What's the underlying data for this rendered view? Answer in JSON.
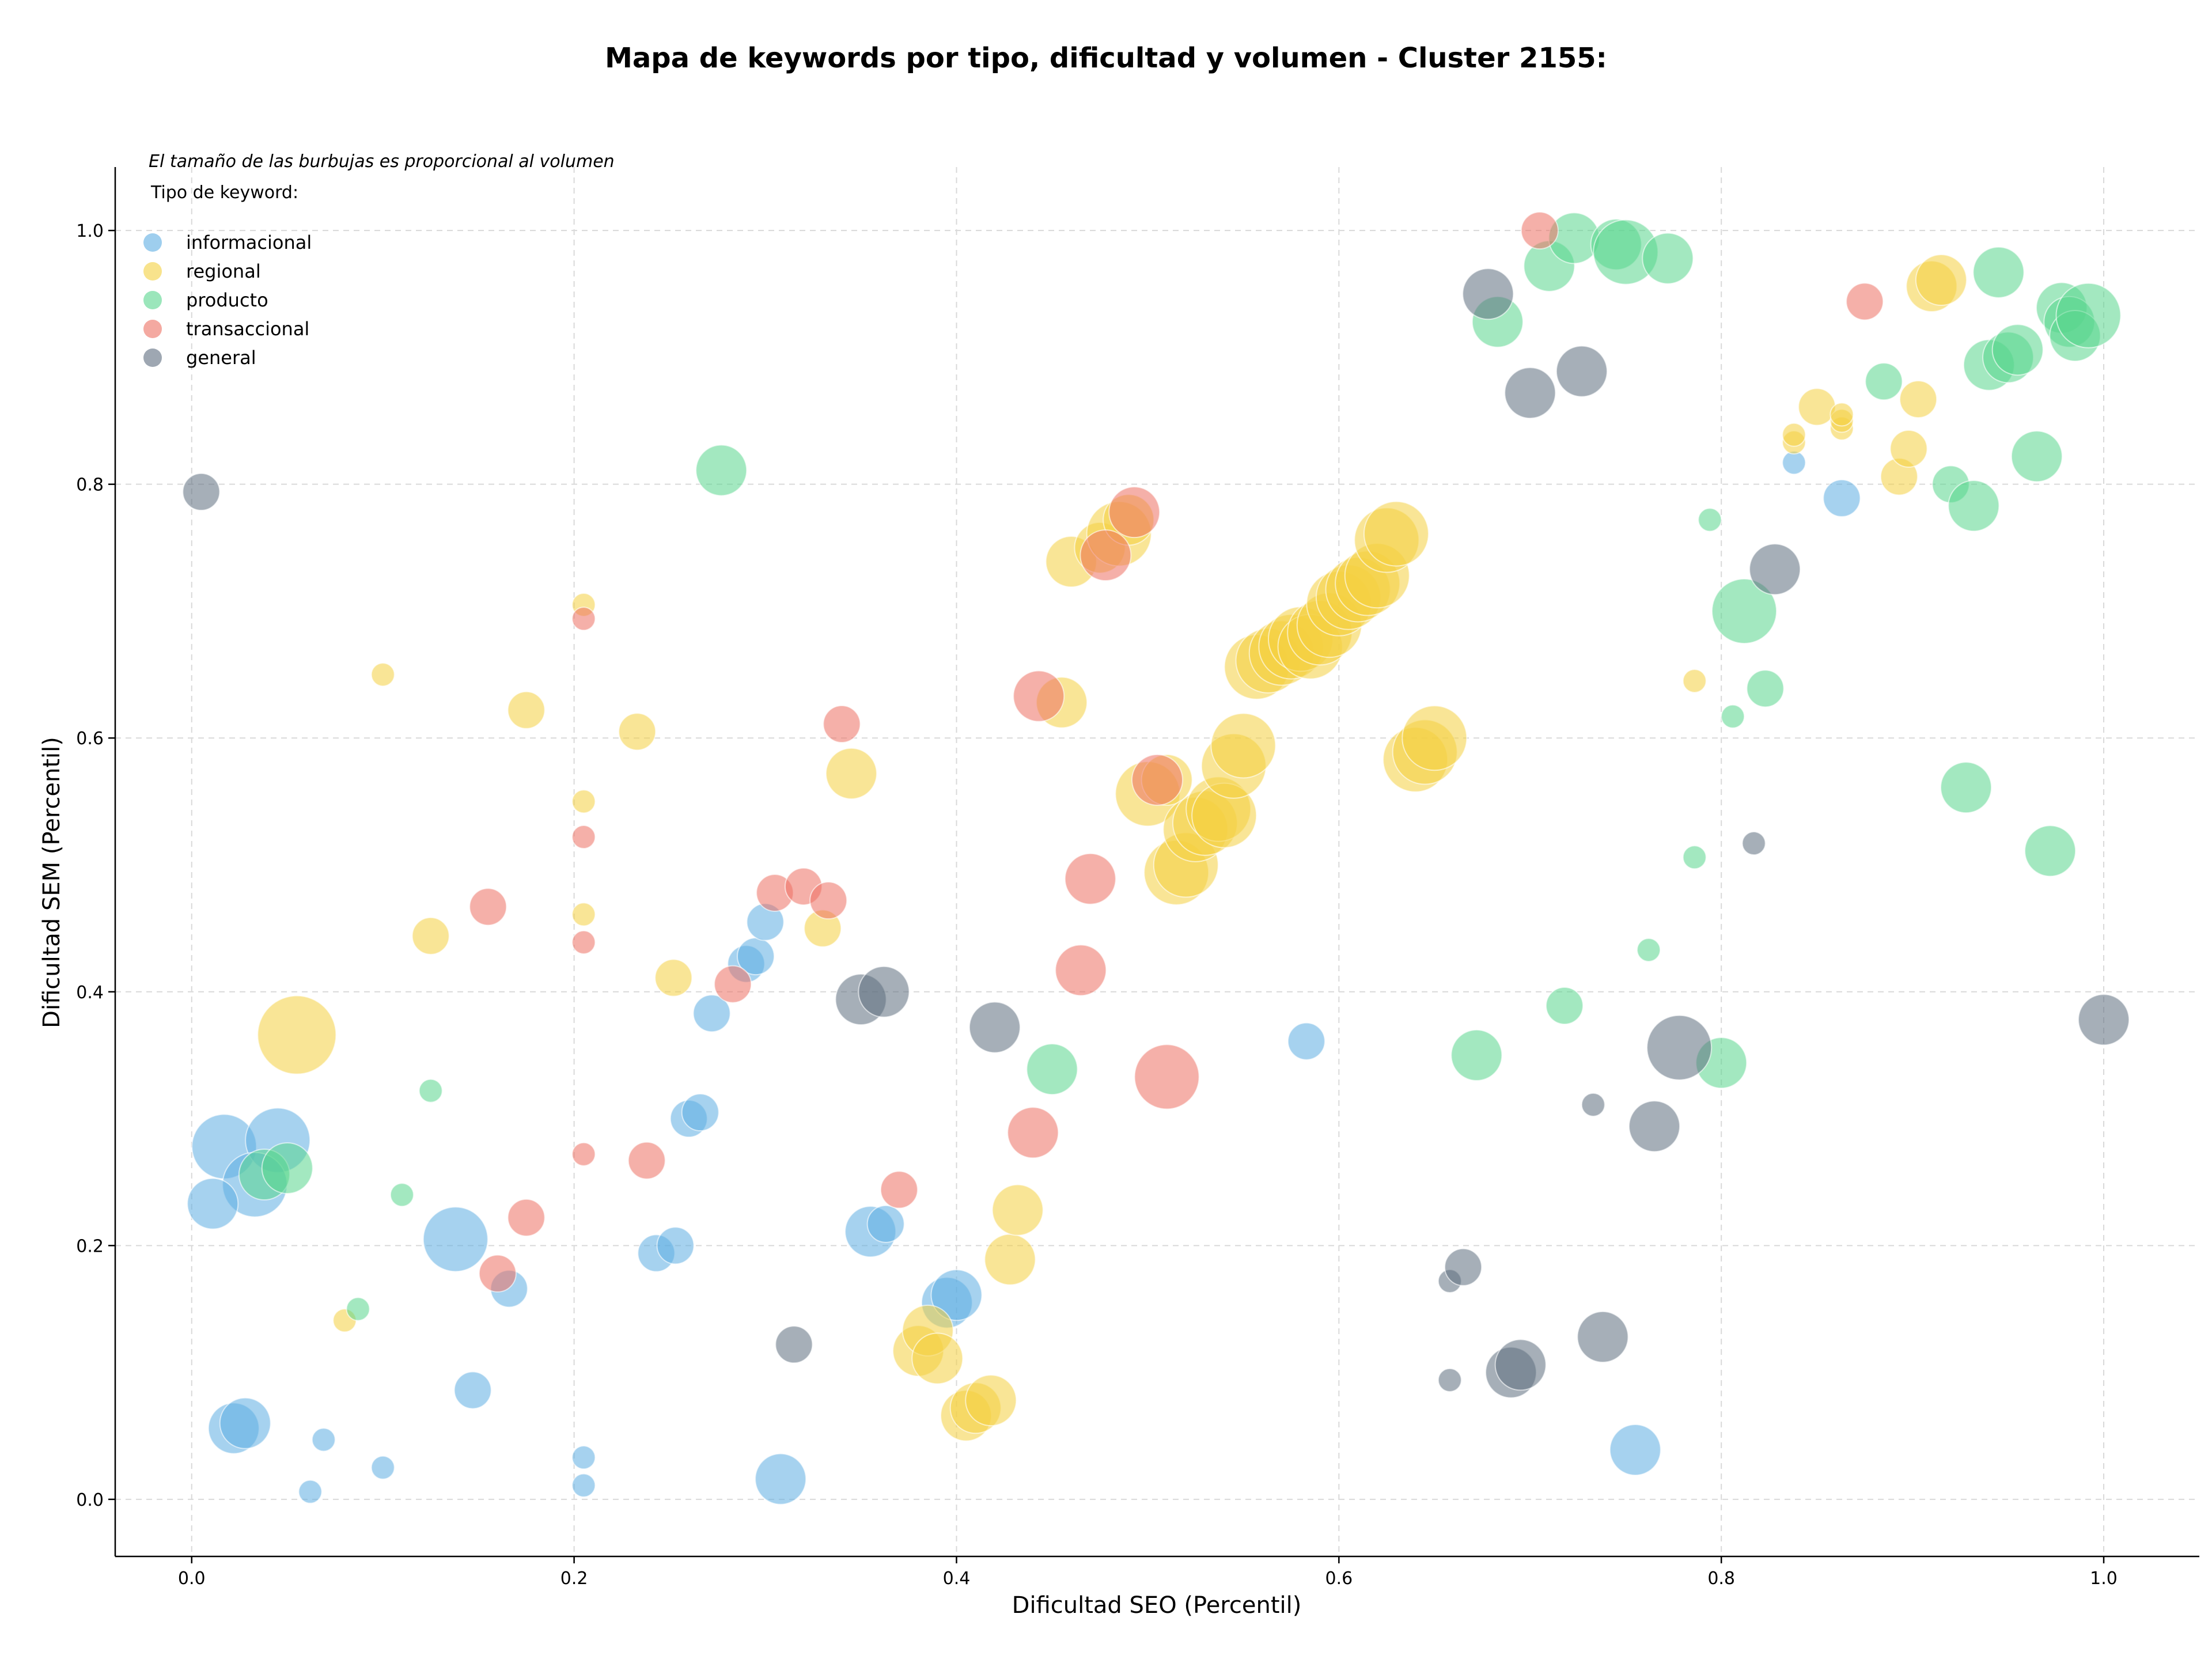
{
  "chart_data": {
    "type": "scatter",
    "title": "Mapa de keywords por tipo, dificultad y volumen - Cluster 2155:",
    "xlabel": "Dificultad SEO (Percentil)",
    "ylabel": "Dificultad SEM (Percentil)",
    "xlim": [
      -0.04,
      1.05
    ],
    "ylim": [
      -0.045,
      1.05
    ],
    "xticks": [
      0.0,
      0.2,
      0.4,
      0.6,
      0.8,
      1.0
    ],
    "yticks": [
      0.0,
      0.2,
      0.4,
      0.6,
      0.8,
      1.0
    ],
    "tick_labels_x": [
      "0.0",
      "0.2",
      "0.4",
      "0.6",
      "0.8",
      "1.0"
    ],
    "tick_labels_y": [
      "0.0",
      "0.2",
      "0.4",
      "0.6",
      "0.8",
      "1.0"
    ],
    "grid": true,
    "annotation": "El tamaño de las burbujas es proporcional al volumen",
    "legend": {
      "title": "Tipo de keyword:",
      "placement": "top-left",
      "entries": [
        "informacional",
        "regional",
        "producto",
        "transaccional",
        "general"
      ]
    },
    "colors": {
      "informacional": "#5dade2",
      "regional": "#f4d03f",
      "producto": "#58d68d",
      "transaccional": "#ec7063",
      "general": "#5d6d7e"
    },
    "size_encoding": "relative bubble size proportional to volume (1-6 scale)",
    "series": [
      {
        "name": "informacional",
        "points": [
          [
            0.017,
            0.278,
            4
          ],
          [
            0.045,
            0.283,
            4
          ],
          [
            0.033,
            0.248,
            4
          ],
          [
            0.011,
            0.233,
            3
          ],
          [
            0.022,
            0.056,
            3
          ],
          [
            0.028,
            0.06,
            3
          ],
          [
            0.062,
            0.006,
            1
          ],
          [
            0.069,
            0.047,
            1
          ],
          [
            0.1,
            0.025,
            1
          ],
          [
            0.138,
            0.205,
            4
          ],
          [
            0.147,
            0.086,
            2
          ],
          [
            0.166,
            0.166,
            2
          ],
          [
            0.205,
            0.033,
            1
          ],
          [
            0.205,
            0.011,
            1
          ],
          [
            0.243,
            0.194,
            2
          ],
          [
            0.253,
            0.2,
            2
          ],
          [
            0.26,
            0.3,
            2
          ],
          [
            0.266,
            0.305,
            2
          ],
          [
            0.272,
            0.383,
            2
          ],
          [
            0.29,
            0.422,
            2
          ],
          [
            0.295,
            0.428,
            2
          ],
          [
            0.3,
            0.455,
            2
          ],
          [
            0.308,
            0.016,
            3
          ],
          [
            0.355,
            0.211,
            3
          ],
          [
            0.363,
            0.217,
            2
          ],
          [
            0.395,
            0.155,
            3
          ],
          [
            0.4,
            0.161,
            3
          ],
          [
            0.583,
            0.361,
            2
          ],
          [
            0.755,
            0.039,
            3
          ],
          [
            0.838,
            0.817,
            1
          ],
          [
            0.863,
            0.789,
            2
          ]
        ]
      },
      {
        "name": "regional",
        "points": [
          [
            0.055,
            0.366,
            5
          ],
          [
            0.08,
            0.141,
            1
          ],
          [
            0.1,
            0.65,
            1
          ],
          [
            0.125,
            0.444,
            2
          ],
          [
            0.175,
            0.622,
            2
          ],
          [
            0.205,
            0.705,
            1
          ],
          [
            0.205,
            0.55,
            1
          ],
          [
            0.205,
            0.461,
            1
          ],
          [
            0.233,
            0.605,
            2
          ],
          [
            0.252,
            0.411,
            2
          ],
          [
            0.33,
            0.45,
            2
          ],
          [
            0.345,
            0.572,
            3
          ],
          [
            0.38,
            0.117,
            3
          ],
          [
            0.385,
            0.133,
            3
          ],
          [
            0.39,
            0.111,
            3
          ],
          [
            0.405,
            0.066,
            3
          ],
          [
            0.41,
            0.072,
            3
          ],
          [
            0.418,
            0.078,
            3
          ],
          [
            0.428,
            0.189,
            3
          ],
          [
            0.432,
            0.228,
            3
          ],
          [
            0.46,
            0.739,
            3
          ],
          [
            0.455,
            0.628,
            3
          ],
          [
            0.475,
            0.75,
            3
          ],
          [
            0.485,
            0.761,
            4
          ],
          [
            0.49,
            0.772,
            3
          ],
          [
            0.5,
            0.556,
            4
          ],
          [
            0.51,
            0.567,
            3
          ],
          [
            0.515,
            0.494,
            4
          ],
          [
            0.52,
            0.5,
            4
          ],
          [
            0.525,
            0.528,
            4
          ],
          [
            0.53,
            0.533,
            4
          ],
          [
            0.537,
            0.544,
            4
          ],
          [
            0.54,
            0.539,
            4
          ],
          [
            0.545,
            0.578,
            4
          ],
          [
            0.55,
            0.594,
            4
          ],
          [
            0.557,
            0.656,
            4
          ],
          [
            0.563,
            0.661,
            4
          ],
          [
            0.57,
            0.667,
            4
          ],
          [
            0.575,
            0.672,
            4
          ],
          [
            0.58,
            0.678,
            4
          ],
          [
            0.585,
            0.672,
            4
          ],
          [
            0.59,
            0.683,
            4
          ],
          [
            0.595,
            0.689,
            4
          ],
          [
            0.6,
            0.706,
            4
          ],
          [
            0.605,
            0.711,
            4
          ],
          [
            0.61,
            0.717,
            4
          ],
          [
            0.615,
            0.722,
            4
          ],
          [
            0.62,
            0.728,
            4
          ],
          [
            0.625,
            0.756,
            4
          ],
          [
            0.63,
            0.761,
            4
          ],
          [
            0.64,
            0.583,
            4
          ],
          [
            0.645,
            0.589,
            4
          ],
          [
            0.65,
            0.6,
            4
          ],
          [
            0.786,
            0.645,
            1
          ],
          [
            0.838,
            0.833,
            1
          ],
          [
            0.838,
            0.839,
            1
          ],
          [
            0.85,
            0.861,
            2
          ],
          [
            0.863,
            0.844,
            1
          ],
          [
            0.863,
            0.85,
            1
          ],
          [
            0.863,
            0.855,
            1
          ],
          [
            0.893,
            0.806,
            2
          ],
          [
            0.898,
            0.828,
            2
          ],
          [
            0.903,
            0.867,
            2
          ],
          [
            0.91,
            0.956,
            3
          ],
          [
            0.915,
            0.961,
            3
          ]
        ]
      },
      {
        "name": "producto",
        "points": [
          [
            0.038,
            0.256,
            3
          ],
          [
            0.05,
            0.261,
            3
          ],
          [
            0.087,
            0.15,
            1
          ],
          [
            0.11,
            0.24,
            1
          ],
          [
            0.125,
            0.322,
            1
          ],
          [
            0.277,
            0.811,
            3
          ],
          [
            0.45,
            0.339,
            3
          ],
          [
            0.672,
            0.35,
            3
          ],
          [
            0.683,
            0.928,
            3
          ],
          [
            0.71,
            0.972,
            3
          ],
          [
            0.718,
            0.389,
            2
          ],
          [
            0.723,
            0.994,
            3
          ],
          [
            0.745,
            0.989,
            3
          ],
          [
            0.75,
            0.983,
            4
          ],
          [
            0.772,
            0.978,
            3
          ],
          [
            0.762,
            0.433,
            1
          ],
          [
            0.786,
            0.506,
            1
          ],
          [
            0.794,
            0.772,
            1
          ],
          [
            0.8,
            0.344,
            3
          ],
          [
            0.806,
            0.617,
            1
          ],
          [
            0.812,
            0.7,
            4
          ],
          [
            0.823,
            0.639,
            2
          ],
          [
            0.885,
            0.881,
            2
          ],
          [
            0.92,
            0.8,
            2
          ],
          [
            0.928,
            0.561,
            3
          ],
          [
            0.932,
            0.783,
            3
          ],
          [
            0.94,
            0.894,
            3
          ],
          [
            0.945,
            0.967,
            3
          ],
          [
            0.95,
            0.9,
            3
          ],
          [
            0.955,
            0.906,
            3
          ],
          [
            0.965,
            0.822,
            3
          ],
          [
            0.972,
            0.511,
            3
          ],
          [
            0.978,
            0.939,
            3
          ],
          [
            0.982,
            0.928,
            3
          ],
          [
            0.985,
            0.917,
            3
          ],
          [
            0.992,
            0.933,
            4
          ]
        ]
      },
      {
        "name": "transaccional",
        "points": [
          [
            0.155,
            0.467,
            2
          ],
          [
            0.16,
            0.178,
            2
          ],
          [
            0.175,
            0.222,
            2
          ],
          [
            0.205,
            0.694,
            1
          ],
          [
            0.205,
            0.522,
            1
          ],
          [
            0.205,
            0.439,
            1
          ],
          [
            0.205,
            0.272,
            1
          ],
          [
            0.238,
            0.267,
            2
          ],
          [
            0.283,
            0.406,
            2
          ],
          [
            0.305,
            0.478,
            2
          ],
          [
            0.32,
            0.483,
            2
          ],
          [
            0.333,
            0.472,
            2
          ],
          [
            0.34,
            0.611,
            2
          ],
          [
            0.37,
            0.244,
            2
          ],
          [
            0.44,
            0.289,
            3
          ],
          [
            0.443,
            0.633,
            3
          ],
          [
            0.465,
            0.417,
            3
          ],
          [
            0.47,
            0.489,
            3
          ],
          [
            0.478,
            0.744,
            3
          ],
          [
            0.493,
            0.778,
            3
          ],
          [
            0.51,
            0.333,
            4
          ],
          [
            0.505,
            0.567,
            3
          ],
          [
            0.705,
            1.0,
            2
          ],
          [
            0.875,
            0.944,
            2
          ]
        ]
      },
      {
        "name": "general",
        "points": [
          [
            0.005,
            0.794,
            2
          ],
          [
            0.315,
            0.122,
            2
          ],
          [
            0.35,
            0.394,
            3
          ],
          [
            0.362,
            0.4,
            3
          ],
          [
            0.42,
            0.372,
            3
          ],
          [
            0.658,
            0.172,
            1
          ],
          [
            0.658,
            0.094,
            1
          ],
          [
            0.665,
            0.183,
            2
          ],
          [
            0.678,
            0.95,
            3
          ],
          [
            0.69,
            0.1,
            3
          ],
          [
            0.695,
            0.106,
            3
          ],
          [
            0.7,
            0.872,
            3
          ],
          [
            0.727,
            0.889,
            3
          ],
          [
            0.733,
            0.311,
            1
          ],
          [
            0.738,
            0.128,
            3
          ],
          [
            0.765,
            0.294,
            3
          ],
          [
            0.778,
            0.356,
            4
          ],
          [
            0.817,
            0.517,
            1
          ],
          [
            0.828,
            0.733,
            3
          ],
          [
            1.0,
            0.378,
            3
          ]
        ]
      }
    ]
  }
}
